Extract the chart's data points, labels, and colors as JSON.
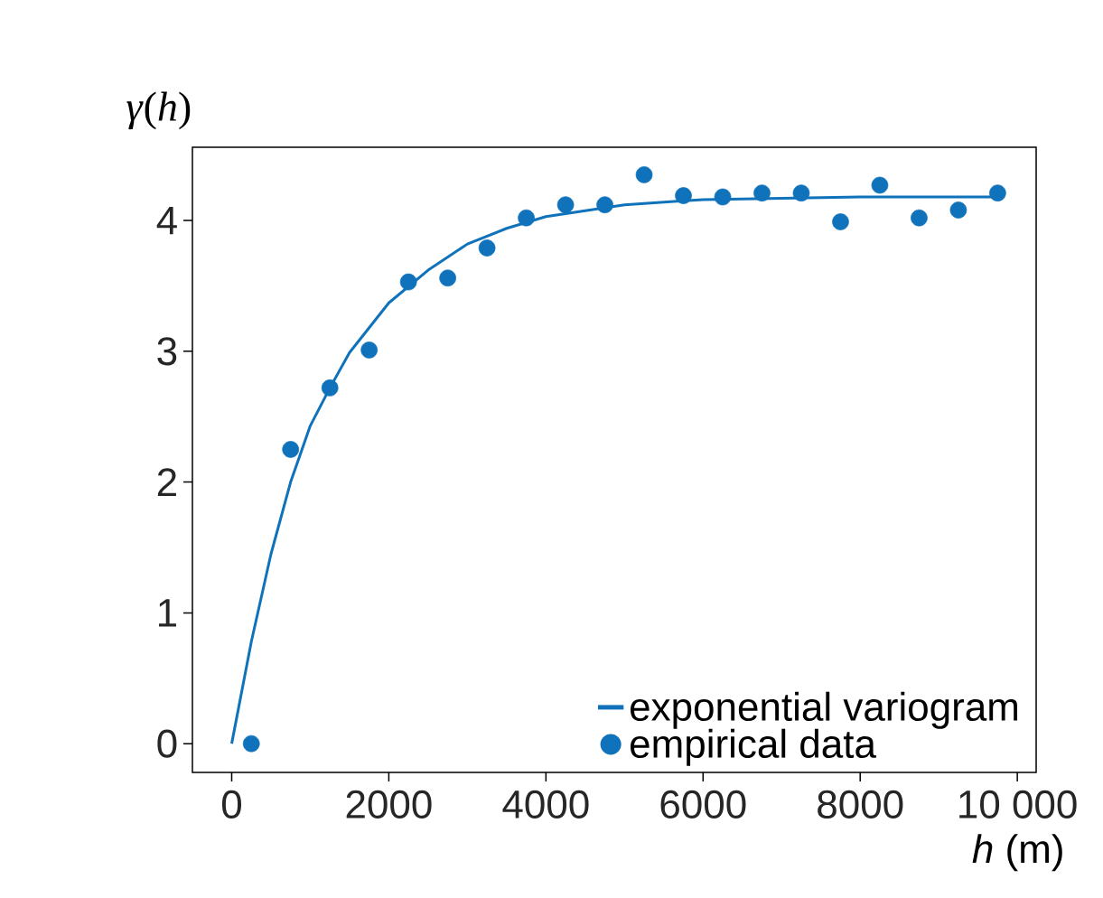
{
  "chart_data": {
    "type": "scatter",
    "xlabel": "*h* (m)",
    "ylabel": "*γ*(*h*)",
    "xlim": [
      -500,
      10240
    ],
    "ylim": [
      -0.22,
      4.56
    ],
    "xticks": [
      0,
      2000,
      4000,
      6000,
      8000,
      {
        "value": 10000,
        "label": "10 000"
      }
    ],
    "yticks": [
      0,
      1,
      2,
      3,
      4
    ],
    "legend": "bottom right",
    "grid": false,
    "series": [
      {
        "name": "exponential variogram",
        "type": "line",
        "color": "#0f72bb",
        "line_style": "solid",
        "x": [
          0,
          250,
          500,
          750,
          1000,
          1250,
          1500,
          2000,
          2500,
          3000,
          3500,
          4000,
          5000,
          6000,
          7000,
          8000,
          9750
        ],
        "values": [
          0,
          0.78,
          1.45,
          2.0,
          2.43,
          2.72,
          2.99,
          3.37,
          3.62,
          3.82,
          3.94,
          4.03,
          4.12,
          4.16,
          4.17,
          4.18,
          4.18
        ]
      },
      {
        "name": "empirical data",
        "color": "#0f72bb",
        "marker": "circle",
        "x": [
          250,
          750,
          1250,
          1750,
          2250,
          2750,
          3250,
          3750,
          4250,
          4750,
          5250,
          5750,
          6250,
          6750,
          7250,
          7750,
          8250,
          8750,
          9250,
          9750
        ],
        "values": [
          0.0,
          2.25,
          2.72,
          3.01,
          3.53,
          3.56,
          3.79,
          4.02,
          4.12,
          4.12,
          4.35,
          4.19,
          4.18,
          4.21,
          4.21,
          3.99,
          4.27,
          4.02,
          4.08,
          4.21
        ]
      }
    ]
  }
}
